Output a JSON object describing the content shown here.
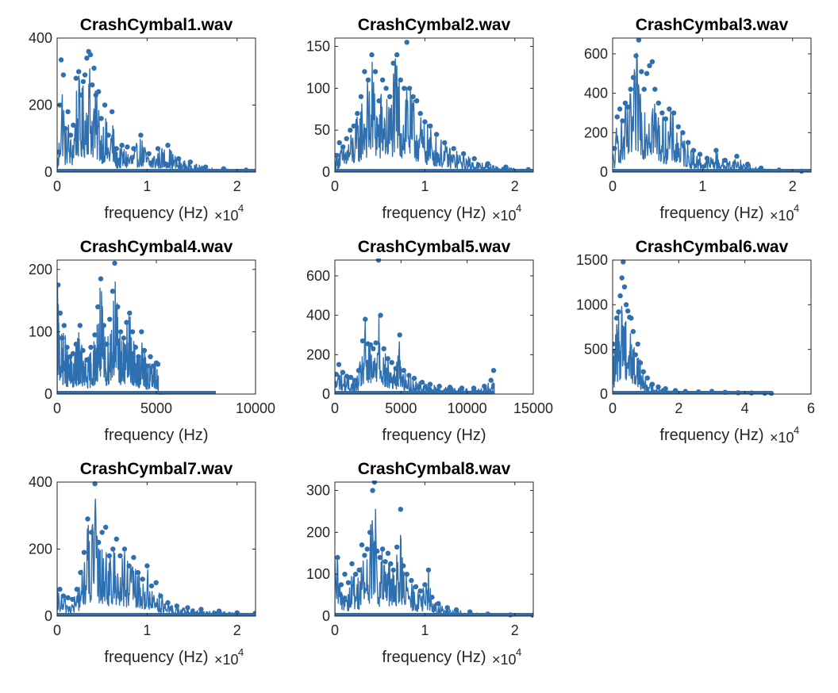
{
  "chart_data": [
    {
      "type": "line",
      "title": "CrashCymbal1.wav",
      "xlabel": "frequency (Hz)",
      "xlim": [
        0,
        22050
      ],
      "ylim": [
        0,
        400
      ],
      "xticks": [
        0,
        10000,
        20000
      ],
      "xticklabels": [
        "0",
        "1",
        "2"
      ],
      "yticks": [
        0,
        200,
        400
      ],
      "yticklabels": [
        "0",
        "200",
        "400"
      ],
      "x_exponent": "4",
      "grid": false,
      "color": "#2e6fb0",
      "peaks": [
        [
          150,
          60
        ],
        [
          300,
          200
        ],
        [
          450,
          335
        ],
        [
          700,
          290
        ],
        [
          900,
          130
        ],
        [
          1200,
          180
        ],
        [
          1500,
          110
        ],
        [
          1800,
          140
        ],
        [
          2100,
          280
        ],
        [
          2400,
          300
        ],
        [
          2600,
          230
        ],
        [
          2900,
          270
        ],
        [
          3100,
          290
        ],
        [
          3300,
          340
        ],
        [
          3500,
          360
        ],
        [
          3700,
          350
        ],
        [
          3900,
          260
        ],
        [
          4100,
          310
        ],
        [
          4300,
          230
        ],
        [
          4600,
          240
        ],
        [
          4900,
          160
        ],
        [
          5300,
          200
        ],
        [
          5700,
          110
        ],
        [
          6100,
          180
        ],
        [
          6600,
          70
        ],
        [
          7200,
          80
        ],
        [
          7800,
          75
        ],
        [
          8500,
          70
        ],
        [
          9300,
          110
        ],
        [
          10200,
          55
        ],
        [
          11200,
          70
        ],
        [
          12300,
          80
        ],
        [
          13500,
          40
        ],
        [
          14800,
          30
        ],
        [
          16500,
          15
        ],
        [
          18500,
          10
        ],
        [
          21000,
          6
        ]
      ]
    },
    {
      "type": "line",
      "title": "CrashCymbal2.wav",
      "xlabel": "frequency (Hz)",
      "xlim": [
        0,
        22050
      ],
      "ylim": [
        0,
        160
      ],
      "xticks": [
        0,
        10000,
        20000
      ],
      "xticklabels": [
        "0",
        "1",
        "2"
      ],
      "yticks": [
        0,
        50,
        100,
        150
      ],
      "yticklabels": [
        "0",
        "50",
        "100",
        "150"
      ],
      "x_exponent": "4",
      "grid": false,
      "color": "#2e6fb0",
      "peaks": [
        [
          200,
          20
        ],
        [
          500,
          35
        ],
        [
          900,
          30
        ],
        [
          1300,
          40
        ],
        [
          1700,
          50
        ],
        [
          2100,
          55
        ],
        [
          2500,
          70
        ],
        [
          2900,
          90
        ],
        [
          3300,
          120
        ],
        [
          3700,
          110
        ],
        [
          4100,
          140
        ],
        [
          4500,
          120
        ],
        [
          4900,
          85
        ],
        [
          5300,
          110
        ],
        [
          5700,
          100
        ],
        [
          6100,
          90
        ],
        [
          6500,
          130
        ],
        [
          6900,
          140
        ],
        [
          7300,
          110
        ],
        [
          7700,
          100
        ],
        [
          8000,
          155
        ],
        [
          8300,
          100
        ],
        [
          8700,
          90
        ],
        [
          9100,
          85
        ],
        [
          9500,
          70
        ],
        [
          10000,
          60
        ],
        [
          10600,
          55
        ],
        [
          11300,
          45
        ],
        [
          12200,
          35
        ],
        [
          13200,
          28
        ],
        [
          14300,
          22
        ],
        [
          15500,
          16
        ],
        [
          17000,
          10
        ],
        [
          19000,
          6
        ],
        [
          21500,
          3
        ]
      ]
    },
    {
      "type": "line",
      "title": "CrashCymbal3.wav",
      "xlabel": "frequency (Hz)",
      "xlim": [
        0,
        22050
      ],
      "ylim": [
        0,
        680
      ],
      "xticks": [
        0,
        10000,
        20000
      ],
      "xticklabels": [
        "0",
        "1",
        "2"
      ],
      "yticks": [
        0,
        200,
        400,
        600
      ],
      "yticklabels": [
        "0",
        "200",
        "400",
        "600"
      ],
      "x_exponent": "4",
      "grid": false,
      "color": "#2e6fb0",
      "peaks": [
        [
          200,
          120
        ],
        [
          500,
          280
        ],
        [
          800,
          320
        ],
        [
          1100,
          260
        ],
        [
          1400,
          350
        ],
        [
          1700,
          330
        ],
        [
          2000,
          420
        ],
        [
          2300,
          480
        ],
        [
          2600,
          590
        ],
        [
          2900,
          670
        ],
        [
          3200,
          510
        ],
        [
          3500,
          420
        ],
        [
          3800,
          500
        ],
        [
          4100,
          540
        ],
        [
          4400,
          560
        ],
        [
          4700,
          420
        ],
        [
          5100,
          350
        ],
        [
          5500,
          300
        ],
        [
          5900,
          270
        ],
        [
          6300,
          320
        ],
        [
          6800,
          300
        ],
        [
          7300,
          230
        ],
        [
          7800,
          200
        ],
        [
          8400,
          150
        ],
        [
          9000,
          110
        ],
        [
          9700,
          90
        ],
        [
          10500,
          70
        ],
        [
          11500,
          110
        ],
        [
          12500,
          60
        ],
        [
          13800,
          80
        ],
        [
          15000,
          40
        ],
        [
          16500,
          20
        ],
        [
          18500,
          10
        ],
        [
          21000,
          5
        ]
      ]
    },
    {
      "type": "line",
      "title": "CrashCymbal4.wav",
      "xlabel": "frequency (Hz)",
      "xlim": [
        0,
        10000
      ],
      "ylim": [
        0,
        215
      ],
      "xticks": [
        0,
        5000,
        10000
      ],
      "xticklabels": [
        "0",
        "5000",
        "10000"
      ],
      "yticks": [
        0,
        100,
        200
      ],
      "yticklabels": [
        "0",
        "100",
        "200"
      ],
      "grid": false,
      "color": "#2e6fb0",
      "peaks": [
        [
          50,
          175
        ],
        [
          150,
          130
        ],
        [
          250,
          90
        ],
        [
          350,
          110
        ],
        [
          500,
          75
        ],
        [
          650,
          60
        ],
        [
          800,
          65
        ],
        [
          950,
          80
        ],
        [
          1150,
          110
        ],
        [
          1300,
          70
        ],
        [
          1500,
          55
        ],
        [
          1700,
          75
        ],
        [
          1900,
          95
        ],
        [
          2050,
          140
        ],
        [
          2200,
          185
        ],
        [
          2350,
          110
        ],
        [
          2500,
          80
        ],
        [
          2650,
          120
        ],
        [
          2800,
          165
        ],
        [
          2900,
          210
        ],
        [
          3050,
          140
        ],
        [
          3200,
          100
        ],
        [
          3350,
          90
        ],
        [
          3500,
          115
        ],
        [
          3650,
          130
        ],
        [
          3800,
          100
        ],
        [
          3950,
          75
        ],
        [
          4100,
          60
        ],
        [
          4250,
          100
        ],
        [
          4400,
          70
        ],
        [
          4550,
          45
        ],
        [
          4700,
          60
        ],
        [
          4850,
          45
        ],
        [
          5000,
          50
        ],
        [
          5080,
          48
        ]
      ],
      "plateau": {
        "xstart": 5100,
        "xend": 8000,
        "y": 1.5
      }
    },
    {
      "type": "line",
      "title": "CrashCymbal5.wav",
      "xlabel": "frequency (Hz)",
      "xlim": [
        0,
        15000
      ],
      "ylim": [
        0,
        680
      ],
      "xticks": [
        0,
        5000,
        10000,
        15000
      ],
      "xticklabels": [
        "0",
        "5000",
        "10000",
        "15000"
      ],
      "yticks": [
        0,
        200,
        400,
        600
      ],
      "yticklabels": [
        "0",
        "200",
        "400",
        "600"
      ],
      "grid": false,
      "color": "#2e6fb0",
      "peaks": [
        [
          100,
          100
        ],
        [
          300,
          150
        ],
        [
          600,
          110
        ],
        [
          900,
          90
        ],
        [
          1200,
          85
        ],
        [
          1500,
          70
        ],
        [
          1800,
          120
        ],
        [
          2100,
          270
        ],
        [
          2300,
          380
        ],
        [
          2500,
          255
        ],
        [
          2700,
          250
        ],
        [
          2900,
          230
        ],
        [
          3100,
          260
        ],
        [
          3300,
          680
        ],
        [
          3450,
          400
        ],
        [
          3700,
          230
        ],
        [
          4000,
          180
        ],
        [
          4300,
          160
        ],
        [
          4600,
          130
        ],
        [
          4900,
          300
        ],
        [
          5200,
          120
        ],
        [
          5600,
          95
        ],
        [
          6000,
          80
        ],
        [
          6600,
          60
        ],
        [
          7200,
          50
        ],
        [
          7900,
          40
        ],
        [
          8700,
          35
        ],
        [
          9600,
          30
        ],
        [
          10500,
          30
        ],
        [
          11300,
          40
        ],
        [
          11800,
          70
        ],
        [
          12000,
          120
        ],
        [
          12100,
          80
        ]
      ],
      "cutoff": 12050
    },
    {
      "type": "line",
      "title": "CrashCymbal6.wav",
      "xlabel": "frequency (Hz)",
      "xlim": [
        0,
        60000
      ],
      "ylim": [
        0,
        1500
      ],
      "xticks": [
        0,
        20000,
        40000,
        60000
      ],
      "xticklabels": [
        "0",
        "2",
        "4",
        "6"
      ],
      "yticks": [
        0,
        500,
        1000,
        1500
      ],
      "yticklabels": [
        "0",
        "500",
        "1000",
        "1500"
      ],
      "x_exponent": "4",
      "grid": false,
      "color": "#2e6fb0",
      "peaks": [
        [
          100,
          560
        ],
        [
          600,
          480
        ],
        [
          1200,
          850
        ],
        [
          1800,
          920
        ],
        [
          2300,
          1100
        ],
        [
          2800,
          1300
        ],
        [
          3200,
          1480
        ],
        [
          3600,
          1200
        ],
        [
          4100,
          1000
        ],
        [
          4600,
          930
        ],
        [
          5100,
          860
        ],
        [
          5600,
          850
        ],
        [
          6200,
          700
        ],
        [
          6900,
          440
        ],
        [
          7600,
          560
        ],
        [
          8400,
          350
        ],
        [
          9300,
          250
        ],
        [
          10500,
          180
        ],
        [
          12000,
          110
        ],
        [
          13800,
          80
        ],
        [
          16000,
          60
        ],
        [
          19000,
          40
        ],
        [
          22000,
          30
        ],
        [
          26000,
          25
        ],
        [
          30000,
          30
        ],
        [
          34000,
          20
        ],
        [
          38000,
          15
        ],
        [
          42000,
          12
        ],
        [
          46000,
          10
        ],
        [
          48000,
          8
        ]
      ],
      "cutoff": 48000
    },
    {
      "type": "line",
      "title": "CrashCymbal7.wav",
      "xlabel": "frequency (Hz)",
      "xlim": [
        0,
        22050
      ],
      "ylim": [
        0,
        400
      ],
      "xticks": [
        0,
        10000,
        20000
      ],
      "xticklabels": [
        "0",
        "1",
        "2"
      ],
      "yticks": [
        0,
        200,
        400
      ],
      "yticklabels": [
        "0",
        "200",
        "400"
      ],
      "x_exponent": "4",
      "grid": false,
      "color": "#2e6fb0",
      "peaks": [
        [
          300,
          80
        ],
        [
          700,
          60
        ],
        [
          1200,
          55
        ],
        [
          1700,
          50
        ],
        [
          2200,
          80
        ],
        [
          2600,
          130
        ],
        [
          3000,
          190
        ],
        [
          3400,
          290
        ],
        [
          3800,
          250
        ],
        [
          4200,
          395
        ],
        [
          4600,
          220
        ],
        [
          5000,
          250
        ],
        [
          5400,
          265
        ],
        [
          5800,
          180
        ],
        [
          6200,
          200
        ],
        [
          6600,
          230
        ],
        [
          7000,
          180
        ],
        [
          7500,
          200
        ],
        [
          8000,
          150
        ],
        [
          8500,
          175
        ],
        [
          9000,
          130
        ],
        [
          9500,
          110
        ],
        [
          10000,
          150
        ],
        [
          10500,
          90
        ],
        [
          11000,
          100
        ],
        [
          11500,
          60
        ],
        [
          12300,
          40
        ],
        [
          13300,
          30
        ],
        [
          14500,
          25
        ],
        [
          16000,
          20
        ],
        [
          18000,
          15
        ],
        [
          20000,
          10
        ],
        [
          22000,
          8
        ]
      ]
    },
    {
      "type": "line",
      "title": "CrashCymbal8.wav",
      "xlabel": "frequency (Hz)",
      "xlim": [
        0,
        22050
      ],
      "ylim": [
        0,
        320
      ],
      "xticks": [
        0,
        10000,
        20000
      ],
      "xticklabels": [
        "0",
        "1",
        "2"
      ],
      "yticks": [
        0,
        100,
        200,
        300
      ],
      "yticklabels": [
        "0",
        "100",
        "200",
        "300"
      ],
      "x_exponent": "4",
      "grid": false,
      "color": "#2e6fb0",
      "peaks": [
        [
          300,
          140
        ],
        [
          700,
          75
        ],
        [
          1100,
          100
        ],
        [
          1500,
          80
        ],
        [
          1900,
          125
        ],
        [
          2300,
          100
        ],
        [
          2700,
          110
        ],
        [
          3000,
          170
        ],
        [
          3300,
          145
        ],
        [
          3600,
          160
        ],
        [
          3900,
          200
        ],
        [
          4200,
          300
        ],
        [
          4400,
          320
        ],
        [
          4700,
          155
        ],
        [
          5000,
          140
        ],
        [
          5300,
          160
        ],
        [
          5600,
          130
        ],
        [
          5900,
          150
        ],
        [
          6200,
          125
        ],
        [
          6500,
          110
        ],
        [
          6900,
          165
        ],
        [
          7300,
          255
        ],
        [
          7600,
          120
        ],
        [
          8000,
          100
        ],
        [
          8500,
          85
        ],
        [
          9000,
          70
        ],
        [
          9500,
          60
        ],
        [
          10000,
          75
        ],
        [
          10400,
          110
        ],
        [
          10800,
          45
        ],
        [
          11500,
          30
        ],
        [
          12500,
          20
        ],
        [
          13500,
          15
        ],
        [
          15000,
          10
        ],
        [
          17000,
          5
        ],
        [
          19500,
          3
        ],
        [
          22000,
          2
        ]
      ]
    }
  ]
}
